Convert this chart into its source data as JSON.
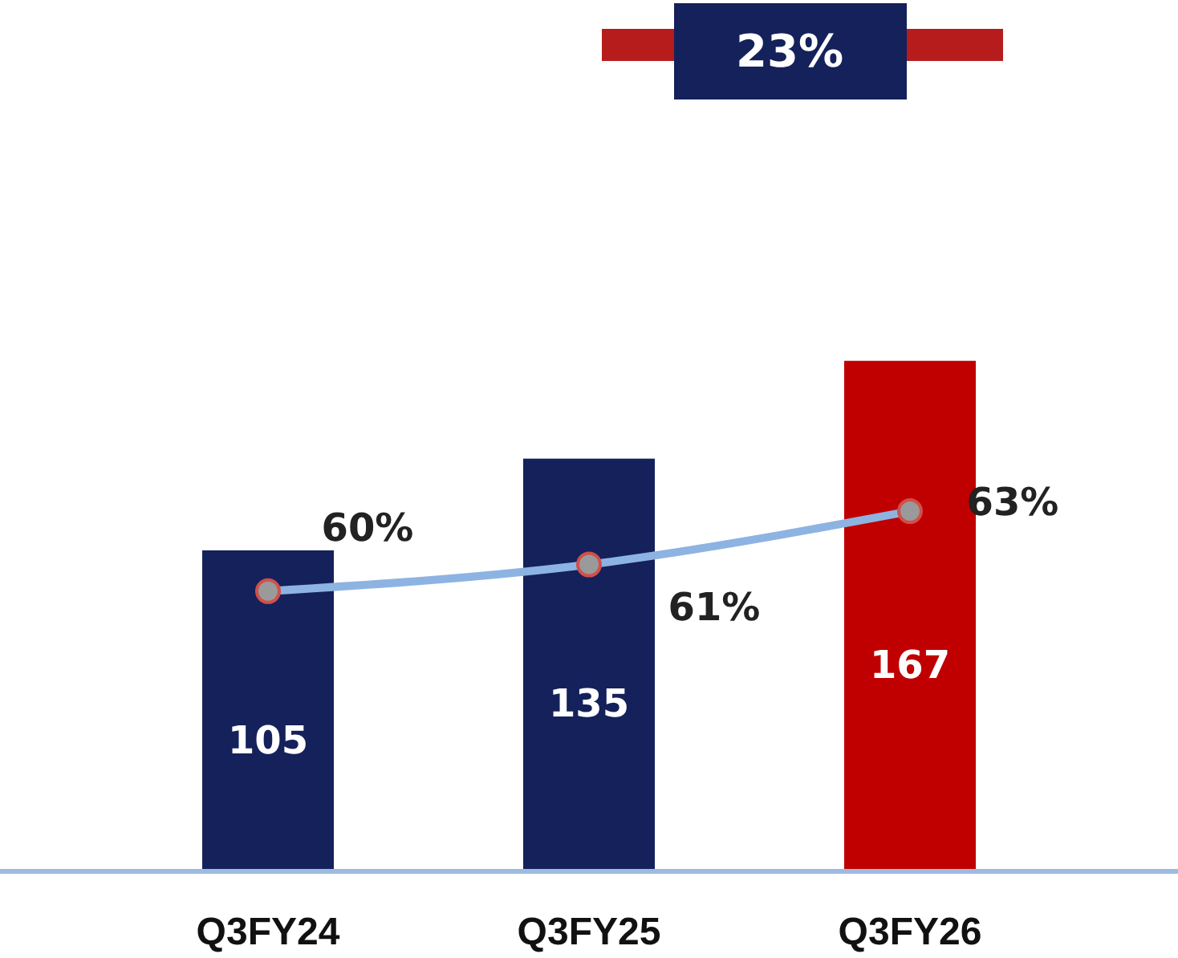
{
  "chart_data": {
    "type": "bar",
    "categories": [
      "Q3FY24",
      "Q3FY25",
      "Q3FY26"
    ],
    "series": [
      {
        "colors": [
          "#14215b",
          "#14215b",
          "#c00000"
        ],
        "values": [
          105,
          135,
          167
        ]
      },
      {
        "type": "line",
        "axis": "y2",
        "color": "#8db3e2",
        "values": [
          60,
          61,
          63
        ],
        "value_labels": [
          "60%",
          "61%",
          "63%"
        ]
      }
    ],
    "tick_labels": "x",
    "data_labels": true,
    "marker": "circle",
    "line_style": "solid",
    "annotations": [
      "23%"
    ]
  }
}
